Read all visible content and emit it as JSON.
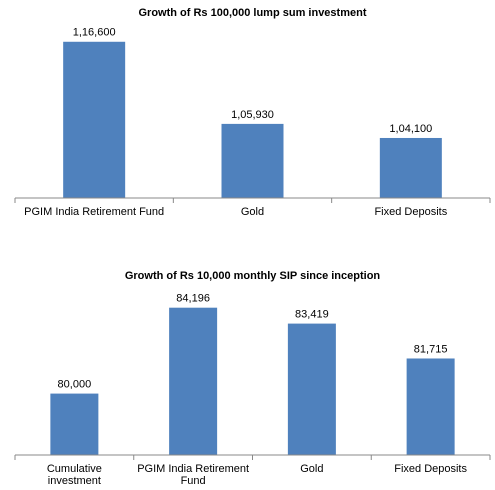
{
  "chart_data": [
    {
      "type": "bar",
      "title": "Growth of Rs 100,000 lump sum investment",
      "categories": [
        "PGIM India Retirement Fund",
        "Gold",
        "Fixed Deposits"
      ],
      "values": [
        116600,
        105930,
        104100
      ],
      "value_labels": [
        "1,16,600",
        "1,05,930",
        "1,04,100"
      ],
      "color": "#4f81bd",
      "ylim": [
        96300,
        118000
      ]
    },
    {
      "type": "bar",
      "title": "Growth of Rs 10,000 monthly SIP since inception",
      "categories": [
        "Cumulative investment",
        "PGIM India Retirement Fund",
        "Gold",
        "Fixed Deposits"
      ],
      "values": [
        80000,
        84196,
        83419,
        81715
      ],
      "value_labels": [
        "80,000",
        "84,196",
        "83,419",
        "81,715"
      ],
      "color": "#4f81bd",
      "ylim": [
        77000,
        85500
      ]
    }
  ]
}
